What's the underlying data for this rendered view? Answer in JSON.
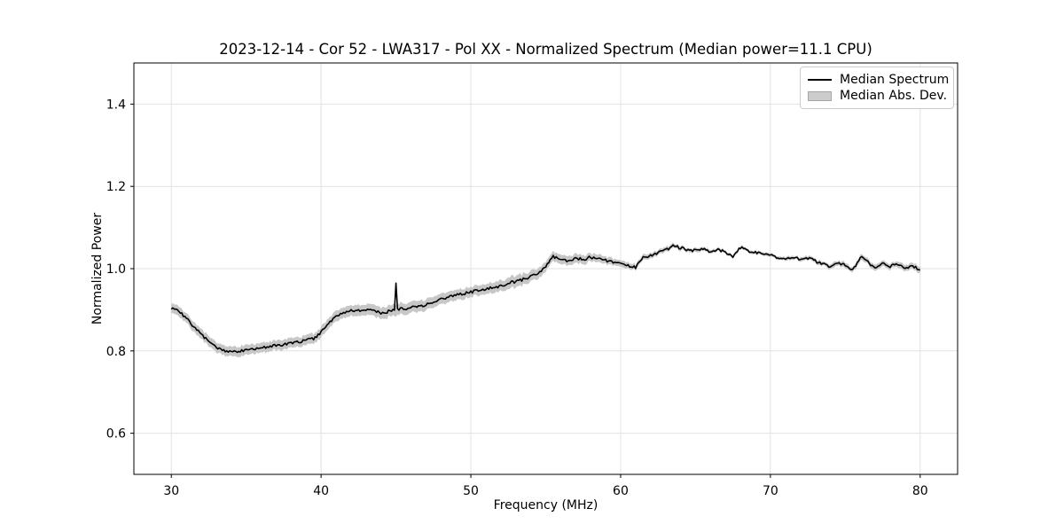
{
  "figure": {
    "background": "#ffffff"
  },
  "chart_data": {
    "type": "line",
    "title": "2023-12-14 - Cor 52 - LWA317 - Pol XX - Normalized Spectrum (Median power=11.1 CPU)",
    "xlabel": "Frequency (MHz)",
    "ylabel": "Normalized Power",
    "xlim": [
      27.5,
      82.5
    ],
    "ylim": [
      0.5,
      1.5
    ],
    "x_ticks": [
      30,
      40,
      50,
      60,
      70,
      80
    ],
    "x_tick_labels": [
      "30",
      "40",
      "50",
      "60",
      "70",
      "80"
    ],
    "y_ticks": [
      0.6,
      0.8,
      1.0,
      1.2,
      1.4
    ],
    "y_tick_labels": [
      "0.6",
      "0.8",
      "1.0",
      "1.2",
      "1.4"
    ],
    "grid": true,
    "style": {
      "grid_color": "#e2e2e2",
      "spine_color": "#000000",
      "tick_color": "#000000",
      "text_color": "#000000"
    },
    "legend": {
      "position": "upper right",
      "entries": [
        {
          "label": "Median Spectrum",
          "type": "line",
          "color": "#000000"
        },
        {
          "label": "Median Abs. Dev.",
          "type": "patch",
          "color": "#cccccc"
        }
      ]
    },
    "series": [
      {
        "name": "Median Spectrum",
        "type": "line",
        "color": "#000000",
        "x_start": 30.0,
        "x_step": 0.5,
        "y": [
          0.905,
          0.897,
          0.879,
          0.859,
          0.84,
          0.823,
          0.81,
          0.801,
          0.798,
          0.799,
          0.802,
          0.804,
          0.807,
          0.81,
          0.813,
          0.815,
          0.818,
          0.822,
          0.827,
          0.83,
          0.845,
          0.866,
          0.884,
          0.894,
          0.897,
          0.899,
          0.901,
          0.898,
          0.892,
          0.896,
          0.901,
          0.903,
          0.905,
          0.908,
          0.913,
          0.918,
          0.925,
          0.931,
          0.935,
          0.939,
          0.943,
          0.947,
          0.95,
          0.954,
          0.958,
          0.965,
          0.969,
          0.974,
          0.98,
          0.99,
          1.004,
          1.03,
          1.022,
          1.02,
          1.025,
          1.022,
          1.028,
          1.024,
          1.02,
          1.016,
          1.013,
          1.007,
          1.003,
          1.028,
          1.032,
          1.038,
          1.044,
          1.056,
          1.05,
          1.046,
          1.044,
          1.048,
          1.042,
          1.046,
          1.04,
          1.03,
          1.052,
          1.044,
          1.04,
          1.036,
          1.032,
          1.028,
          1.026,
          1.028,
          1.022,
          1.026,
          1.018,
          1.012,
          1.004,
          1.014,
          1.008,
          0.996,
          1.028,
          1.018,
          1.0,
          1.014,
          1.006,
          1.01,
          1.002,
          1.006,
          0.998
        ]
      },
      {
        "name": "Median Abs. Dev.",
        "type": "band",
        "color": "#c7c7c7",
        "halfwidth_points": [
          [
            30,
            0.012
          ],
          [
            34,
            0.012
          ],
          [
            38,
            0.012
          ],
          [
            42,
            0.013
          ],
          [
            45,
            0.014
          ],
          [
            48,
            0.013
          ],
          [
            51,
            0.012
          ],
          [
            53,
            0.014
          ],
          [
            55,
            0.012
          ],
          [
            57,
            0.011
          ],
          [
            59,
            0.009
          ],
          [
            61,
            0.007
          ],
          [
            63,
            0.006
          ],
          [
            65,
            0.005
          ],
          [
            67,
            0.004
          ],
          [
            70,
            0.004
          ],
          [
            72,
            0.004
          ],
          [
            74,
            0.006
          ],
          [
            76,
            0.007
          ],
          [
            78,
            0.007
          ],
          [
            80,
            0.008
          ]
        ]
      }
    ],
    "spike": {
      "frequency": 45.0,
      "peak": 0.965
    },
    "noise": {
      "seed": 7,
      "line_jitter": 0.0035,
      "band_jitter": 0.0015,
      "dense_step_mhz": 0.1
    }
  }
}
